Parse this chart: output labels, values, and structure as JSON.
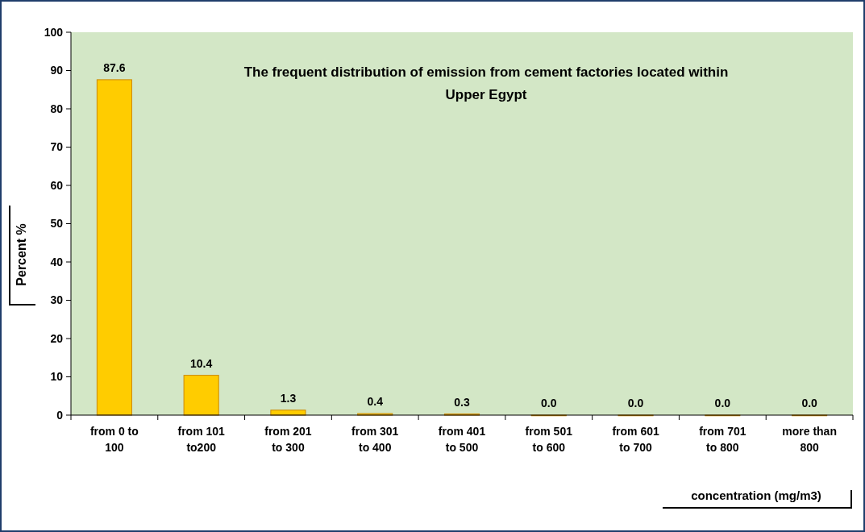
{
  "chart_data": {
    "type": "bar",
    "title": "The frequent distribution of emission from cement factories located within Upper Egypt",
    "xlabel": "concentration (mg/m3)",
    "ylabel": "Percent %",
    "categories": [
      "from 0 to\n100",
      "from 101\nto200",
      "from 201\nto 300",
      "from 301\nto 400",
      "from 401\nto 500",
      "from 501\nto 600",
      "from 601\nto 700",
      "from 701\nto 800",
      "more than\n800"
    ],
    "values": [
      87.6,
      10.4,
      1.3,
      0.4,
      0.3,
      0,
      0,
      0,
      0
    ],
    "value_labels": [
      "87.6",
      "10.4",
      "1.3",
      "0.4",
      "0.3",
      "0.0",
      "0.0",
      "0.0",
      "0.0"
    ],
    "color": "#ffcc00",
    "ylim": [
      0,
      100
    ],
    "yticks": [
      0,
      10,
      20,
      30,
      40,
      50,
      60,
      70,
      80,
      90,
      100
    ],
    "grid": false
  }
}
